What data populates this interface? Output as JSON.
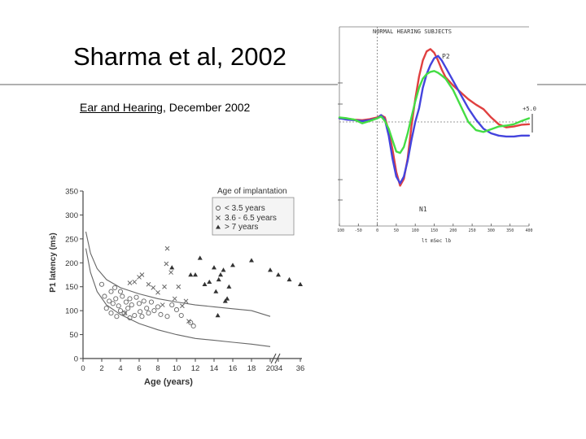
{
  "slide": {
    "title": "Sharma et al, 2002",
    "journal": "Ear and Hearing",
    "date": ", December 2002"
  },
  "chart_data": [
    {
      "type": "scatter",
      "xlabel": "Age (years)",
      "ylabel": "P1 latency (ms)",
      "xlim": [
        0,
        36
      ],
      "ylim": [
        0,
        350
      ],
      "x_ticks": [
        "0",
        "2",
        "4",
        "6",
        "8",
        "10",
        "12",
        "14",
        "16",
        "18",
        "20",
        "34",
        "36"
      ],
      "y_ticks": [
        "0",
        "50",
        "100",
        "150",
        "200",
        "250",
        "300",
        "350"
      ],
      "axis_break_after": 20,
      "legend_title": "Age of implantation",
      "legend_position": "top-right",
      "grid": false,
      "series": [
        {
          "name": "< 3.5 years",
          "marker": "circle",
          "points": [
            [
              2,
              155
            ],
            [
              2.3,
              130
            ],
            [
              2.5,
              105
            ],
            [
              2.8,
              120
            ],
            [
              3,
              140
            ],
            [
              3,
              95
            ],
            [
              3.2,
              115
            ],
            [
              3.4,
              148
            ],
            [
              3.5,
              125
            ],
            [
              3.6,
              88
            ],
            [
              3.8,
              110
            ],
            [
              4,
              100
            ],
            [
              4,
              140
            ],
            [
              4.2,
              130
            ],
            [
              4.4,
              95
            ],
            [
              4.6,
              118
            ],
            [
              4.8,
              105
            ],
            [
              5,
              85
            ],
            [
              5,
              125
            ],
            [
              5.2,
              112
            ],
            [
              5.5,
              90
            ],
            [
              5.7,
              128
            ],
            [
              6,
              115
            ],
            [
              6.1,
              98
            ],
            [
              6.3,
              88
            ],
            [
              6.5,
              120
            ],
            [
              6.8,
              105
            ],
            [
              7,
              95
            ],
            [
              7.3,
              118
            ],
            [
              7.6,
              100
            ],
            [
              8,
              108
            ],
            [
              8.3,
              92
            ],
            [
              9,
              88
            ],
            [
              9.5,
              112
            ],
            [
              10,
              102
            ],
            [
              10.5,
              90
            ],
            [
              11.5,
              75
            ],
            [
              11.8,
              68
            ]
          ]
        },
        {
          "name": "3.6 - 6.5 years",
          "marker": "x",
          "points": [
            [
              4.5,
              95
            ],
            [
              5,
              158
            ],
            [
              5.5,
              160
            ],
            [
              6,
              170
            ],
            [
              6.3,
              175
            ],
            [
              7,
              155
            ],
            [
              7.5,
              148
            ],
            [
              8,
              138
            ],
            [
              8.5,
              112
            ],
            [
              8.7,
              150
            ],
            [
              8.9,
              198
            ],
            [
              9,
              230
            ],
            [
              9.4,
              180
            ],
            [
              9.8,
              125
            ],
            [
              10.2,
              150
            ],
            [
              10.6,
              110
            ],
            [
              11,
              120
            ],
            [
              11.3,
              78
            ]
          ]
        },
        {
          "name": "> 7 years",
          "marker": "triangle",
          "points": [
            [
              9.5,
              190
            ],
            [
              11.5,
              175
            ],
            [
              12,
              175
            ],
            [
              12.5,
              210
            ],
            [
              13,
              155
            ],
            [
              13.5,
              160
            ],
            [
              14,
              190
            ],
            [
              14.2,
              140
            ],
            [
              14.5,
              165
            ],
            [
              14.7,
              175
            ],
            [
              15,
              185
            ],
            [
              15.2,
              120
            ],
            [
              15.4,
              125
            ],
            [
              15.6,
              150
            ],
            [
              16,
              195
            ],
            [
              18,
              205
            ],
            [
              20,
              185
            ],
            [
              34,
              175
            ],
            [
              35,
              165
            ],
            [
              36,
              155
            ],
            [
              14.4,
              90
            ]
          ]
        }
      ],
      "curves": [
        {
          "name": "upper",
          "x": [
            0.3,
            0.8,
            1.5,
            2.5,
            4,
            6,
            8,
            10,
            12,
            14,
            16,
            18,
            20
          ],
          "y": [
            265,
            220,
            188,
            165,
            148,
            135,
            125,
            118,
            112,
            108,
            104,
            100,
            88
          ]
        },
        {
          "name": "lower",
          "x": [
            0.3,
            0.8,
            1.5,
            2.5,
            4,
            6,
            8,
            10,
            12,
            14,
            16,
            18,
            20
          ],
          "y": [
            230,
            180,
            140,
            112,
            92,
            73,
            60,
            50,
            42,
            38,
            34,
            30,
            25
          ]
        }
      ]
    },
    {
      "type": "line",
      "title": "NORMAL HEARING SUBJECTS",
      "xlabel": "",
      "ylabel": "",
      "x_ticks": [
        "-100",
        "-50",
        "0",
        "50",
        "100",
        "150",
        "200",
        "250",
        "300",
        "350",
        "400"
      ],
      "peak_labels": [
        "P2",
        "N1"
      ],
      "scale_label": "+5.0",
      "series": [
        {
          "name": "",
          "color": "#e04040",
          "x": [
            -100,
            -80,
            -60,
            -40,
            -20,
            0,
            10,
            20,
            30,
            40,
            50,
            60,
            70,
            80,
            90,
            100,
            110,
            120,
            130,
            140,
            150,
            160,
            170,
            180,
            200,
            220,
            240,
            260,
            280,
            300,
            320,
            340,
            360,
            380,
            400
          ],
          "y": [
            0.8,
            0.7,
            0.5,
            0.4,
            0.6,
            1.0,
            1.5,
            1.0,
            -2.0,
            -6.0,
            -11.0,
            -14.0,
            -12.5,
            -8.0,
            -1.0,
            5.0,
            10.0,
            13.5,
            15.5,
            16.0,
            15.2,
            13.5,
            11.5,
            9.8,
            8.0,
            6.5,
            5.0,
            3.8,
            2.8,
            1.0,
            -0.5,
            -1.2,
            -1.0,
            -0.6,
            -0.5
          ]
        },
        {
          "name": "",
          "color": "#4444dd",
          "x": [
            -100,
            -80,
            -60,
            -40,
            -20,
            0,
            10,
            20,
            30,
            40,
            50,
            60,
            70,
            80,
            90,
            100,
            110,
            120,
            130,
            140,
            150,
            160,
            170,
            180,
            200,
            220,
            240,
            260,
            280,
            300,
            320,
            340,
            360,
            380,
            400
          ],
          "y": [
            0.8,
            0.5,
            0.4,
            0.2,
            0.4,
            0.8,
            1.5,
            0.5,
            -3.0,
            -8.0,
            -12.0,
            -13.5,
            -12.0,
            -8.5,
            -4.0,
            0.0,
            3.0,
            7.5,
            10.5,
            12.5,
            14.0,
            14.5,
            13.5,
            12.0,
            9.0,
            6.0,
            3.0,
            0.5,
            -1.5,
            -2.5,
            -3.0,
            -3.2,
            -3.2,
            -3.0,
            -3.0
          ]
        },
        {
          "name": "",
          "color": "#44dd44",
          "x": [
            -100,
            -80,
            -60,
            -40,
            -20,
            0,
            10,
            20,
            30,
            40,
            50,
            60,
            70,
            80,
            90,
            100,
            110,
            120,
            130,
            140,
            150,
            160,
            170,
            180,
            200,
            220,
            240,
            260,
            280,
            300,
            320,
            340,
            360,
            380,
            400
          ],
          "y": [
            1.0,
            0.8,
            0.5,
            -0.3,
            0.2,
            0.8,
            1.2,
            0.2,
            -1.5,
            -4.0,
            -6.5,
            -6.8,
            -5.5,
            -2.5,
            1.0,
            4.5,
            7.5,
            9.5,
            10.5,
            11.0,
            11.2,
            10.8,
            10.2,
            9.5,
            7.0,
            3.5,
            0.0,
            -1.8,
            -2.2,
            -1.6,
            -1.0,
            -0.8,
            -0.5,
            0.2,
            0.8
          ]
        }
      ]
    }
  ]
}
